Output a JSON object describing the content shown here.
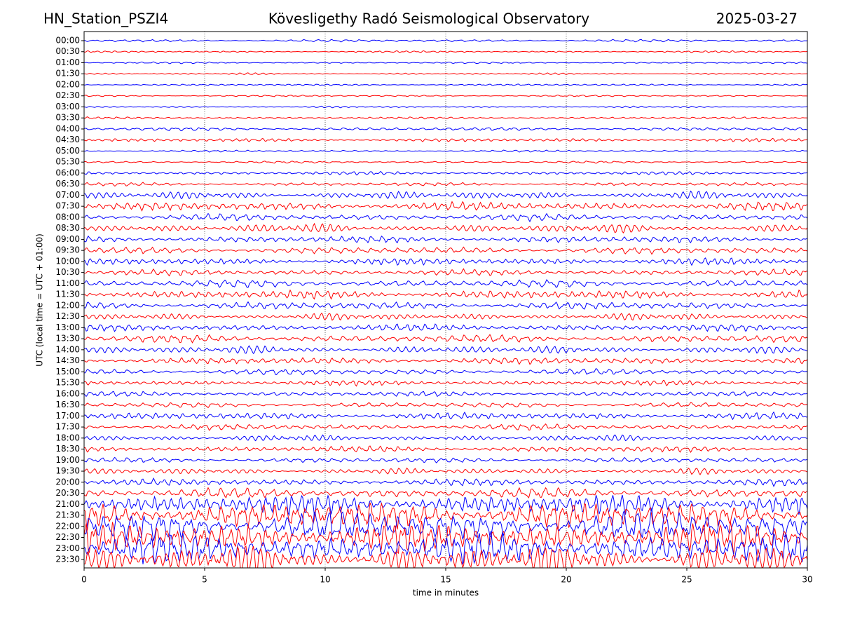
{
  "chart_data": {
    "type": "helicorder",
    "title_left": "HN_Station_PSZI4",
    "title": "Kövesligethy Radó Seismological Observatory",
    "title_right": "2025-03-27",
    "x_label": "time in minutes",
    "y_label": "UTC (local time = UTC + 01:00)",
    "categories": [
      "00:00",
      "00:30",
      "01:00",
      "01:30",
      "02:00",
      "02:30",
      "03:00",
      "03:30",
      "04:00",
      "04:30",
      "05:00",
      "05:30",
      "06:00",
      "06:30",
      "07:00",
      "07:30",
      "08:00",
      "08:30",
      "09:00",
      "09:30",
      "10:00",
      "10:30",
      "11:00",
      "11:30",
      "12:00",
      "12:30",
      "13:00",
      "13:30",
      "14:00",
      "14:30",
      "15:00",
      "15:30",
      "16:00",
      "16:30",
      "17:00",
      "17:30",
      "18:00",
      "18:30",
      "19:00",
      "19:30",
      "20:00",
      "20:30",
      "21:00",
      "21:30",
      "22:00",
      "22:30",
      "23:00",
      "23:30"
    ],
    "values": [
      0.15,
      0.1,
      0.1,
      0.1,
      0.1,
      0.1,
      0.1,
      0.12,
      0.2,
      0.2,
      0.12,
      0.12,
      0.2,
      0.2,
      0.45,
      0.5,
      0.4,
      0.5,
      0.4,
      0.4,
      0.4,
      0.35,
      0.45,
      0.5,
      0.45,
      0.4,
      0.4,
      0.45,
      0.45,
      0.4,
      0.35,
      0.3,
      0.3,
      0.3,
      0.4,
      0.35,
      0.35,
      0.35,
      0.3,
      0.35,
      0.4,
      0.6,
      1.2,
      1.6,
      1.8,
      1.8,
      1.8,
      1.6
    ],
    "colors": [
      "#0000ff",
      "#ff0000"
    ],
    "xlim": [
      0,
      30
    ],
    "xticks": [
      0,
      5,
      10,
      15,
      20,
      25,
      30
    ],
    "grid": true
  }
}
